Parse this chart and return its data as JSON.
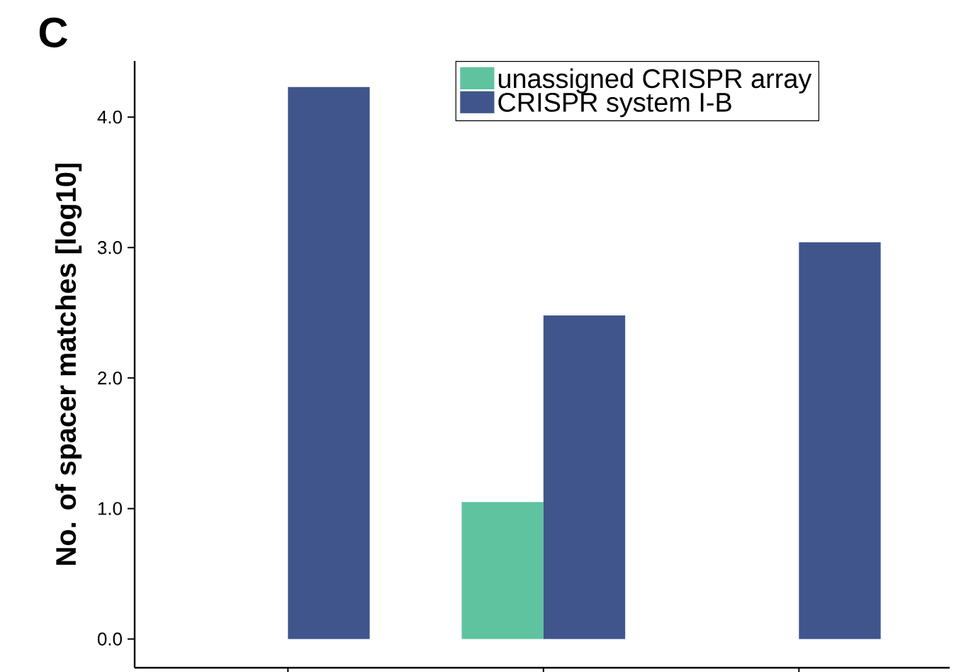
{
  "chart_data": {
    "type": "bar",
    "title": "C",
    "ylabel": "No. of spacer matches [log10]",
    "categories": [
      null,
      null,
      null
    ],
    "series": [
      {
        "name": "unassigned CRISPR array",
        "color": "#5fc3a0",
        "values": [
          null,
          1.05,
          null
        ]
      },
      {
        "name": "CRISPR system I-B",
        "color": "#3f558c",
        "values": [
          4.23,
          2.48,
          3.04
        ]
      }
    ],
    "ylim": [
      -0.22,
      4.43
    ],
    "yticks": [
      {
        "value": 0,
        "label": "0.0"
      },
      {
        "value": 1,
        "label": "1.0"
      },
      {
        "value": 2,
        "label": "2.0"
      },
      {
        "value": 3,
        "label": "3.0"
      },
      {
        "value": 4,
        "label": "4.0"
      }
    ],
    "tick_labels": "y",
    "grid": false,
    "legend": "top right"
  }
}
